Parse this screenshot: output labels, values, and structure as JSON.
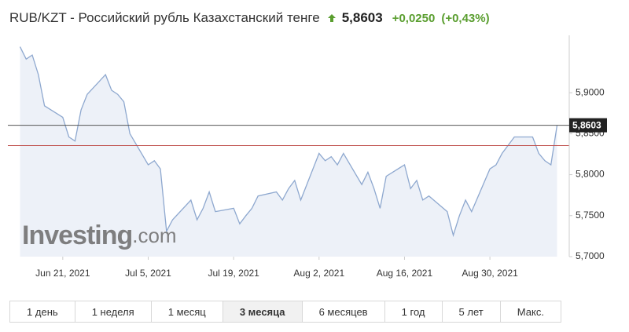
{
  "header": {
    "title": "RUB/KZT - Российский рубль Казахстанский тенге",
    "price": "5,8603",
    "change": "+0,0250",
    "change_percent": "(+0,43%)"
  },
  "chart_data": {
    "type": "area-line",
    "color": "#8ea8cf",
    "fill": "#edf1f8",
    "x": [
      "2021-06-14",
      "2021-06-15",
      "2021-06-16",
      "2021-06-17",
      "2021-06-18",
      "2021-06-21",
      "2021-06-22",
      "2021-06-23",
      "2021-06-24",
      "2021-06-25",
      "2021-06-28",
      "2021-06-29",
      "2021-06-30",
      "2021-07-01",
      "2021-07-02",
      "2021-07-05",
      "2021-07-06",
      "2021-07-07",
      "2021-07-08",
      "2021-07-09",
      "2021-07-12",
      "2021-07-13",
      "2021-07-14",
      "2021-07-15",
      "2021-07-16",
      "2021-07-19",
      "2021-07-20",
      "2021-07-21",
      "2021-07-22",
      "2021-07-23",
      "2021-07-26",
      "2021-07-27",
      "2021-07-28",
      "2021-07-29",
      "2021-07-30",
      "2021-08-02",
      "2021-08-03",
      "2021-08-04",
      "2021-08-05",
      "2021-08-06",
      "2021-08-09",
      "2021-08-10",
      "2021-08-11",
      "2021-08-12",
      "2021-08-13",
      "2021-08-16",
      "2021-08-17",
      "2021-08-18",
      "2021-08-19",
      "2021-08-20",
      "2021-08-23",
      "2021-08-24",
      "2021-08-25",
      "2021-08-26",
      "2021-08-27",
      "2021-08-30",
      "2021-08-31",
      "2021-09-01",
      "2021-09-02",
      "2021-09-03",
      "2021-09-06",
      "2021-09-07",
      "2021-09-08",
      "2021-09-09",
      "2021-09-10"
    ],
    "values": [
      5.956,
      5.941,
      5.946,
      5.922,
      5.884,
      5.87,
      5.846,
      5.841,
      5.879,
      5.898,
      5.922,
      5.903,
      5.898,
      5.889,
      5.85,
      5.812,
      5.817,
      5.807,
      5.731,
      5.745,
      5.769,
      5.745,
      5.759,
      5.779,
      5.755,
      5.759,
      5.74,
      5.75,
      5.759,
      5.774,
      5.779,
      5.769,
      5.783,
      5.793,
      5.769,
      5.826,
      5.817,
      5.822,
      5.812,
      5.826,
      5.788,
      5.803,
      5.783,
      5.759,
      5.798,
      5.812,
      5.783,
      5.793,
      5.769,
      5.774,
      5.755,
      5.726,
      5.75,
      5.769,
      5.755,
      5.807,
      5.812,
      5.826,
      5.836,
      5.846,
      5.846,
      5.826,
      5.817,
      5.812,
      5.8603
    ],
    "xlim": [
      "2021-06-12",
      "2021-09-12"
    ],
    "xticks": [
      {
        "value": "2021-06-21",
        "label": "Jun 21, 2021"
      },
      {
        "value": "2021-07-05",
        "label": "Jul 5, 2021"
      },
      {
        "value": "2021-07-19",
        "label": "Jul 19, 2021"
      },
      {
        "value": "2021-08-02",
        "label": "Aug 2, 2021"
      },
      {
        "value": "2021-08-16",
        "label": "Aug 16, 2021"
      },
      {
        "value": "2021-08-30",
        "label": "Aug 30, 2021"
      }
    ],
    "ylim": [
      5.7,
      5.97
    ],
    "yticks": [
      {
        "value": 5.7,
        "label": "5,7000"
      },
      {
        "value": 5.75,
        "label": "5,7500"
      },
      {
        "value": 5.8,
        "label": "5,8000"
      },
      {
        "value": 5.85,
        "label": "5,8500"
      },
      {
        "value": 5.9,
        "label": "5,9000"
      }
    ],
    "last_value": {
      "value": 5.8603,
      "label": "5,8603"
    },
    "reference_line": {
      "value": 5.8355,
      "color": "#c0504d"
    },
    "watermark": {
      "main": "Investing",
      "suffix": ".com"
    }
  },
  "ranges": {
    "items": [
      "1 день",
      "1 неделя",
      "1 месяц",
      "3 месяца",
      "6 месяцев",
      "1 год",
      "5 лет",
      "Макс."
    ],
    "active": 3
  }
}
